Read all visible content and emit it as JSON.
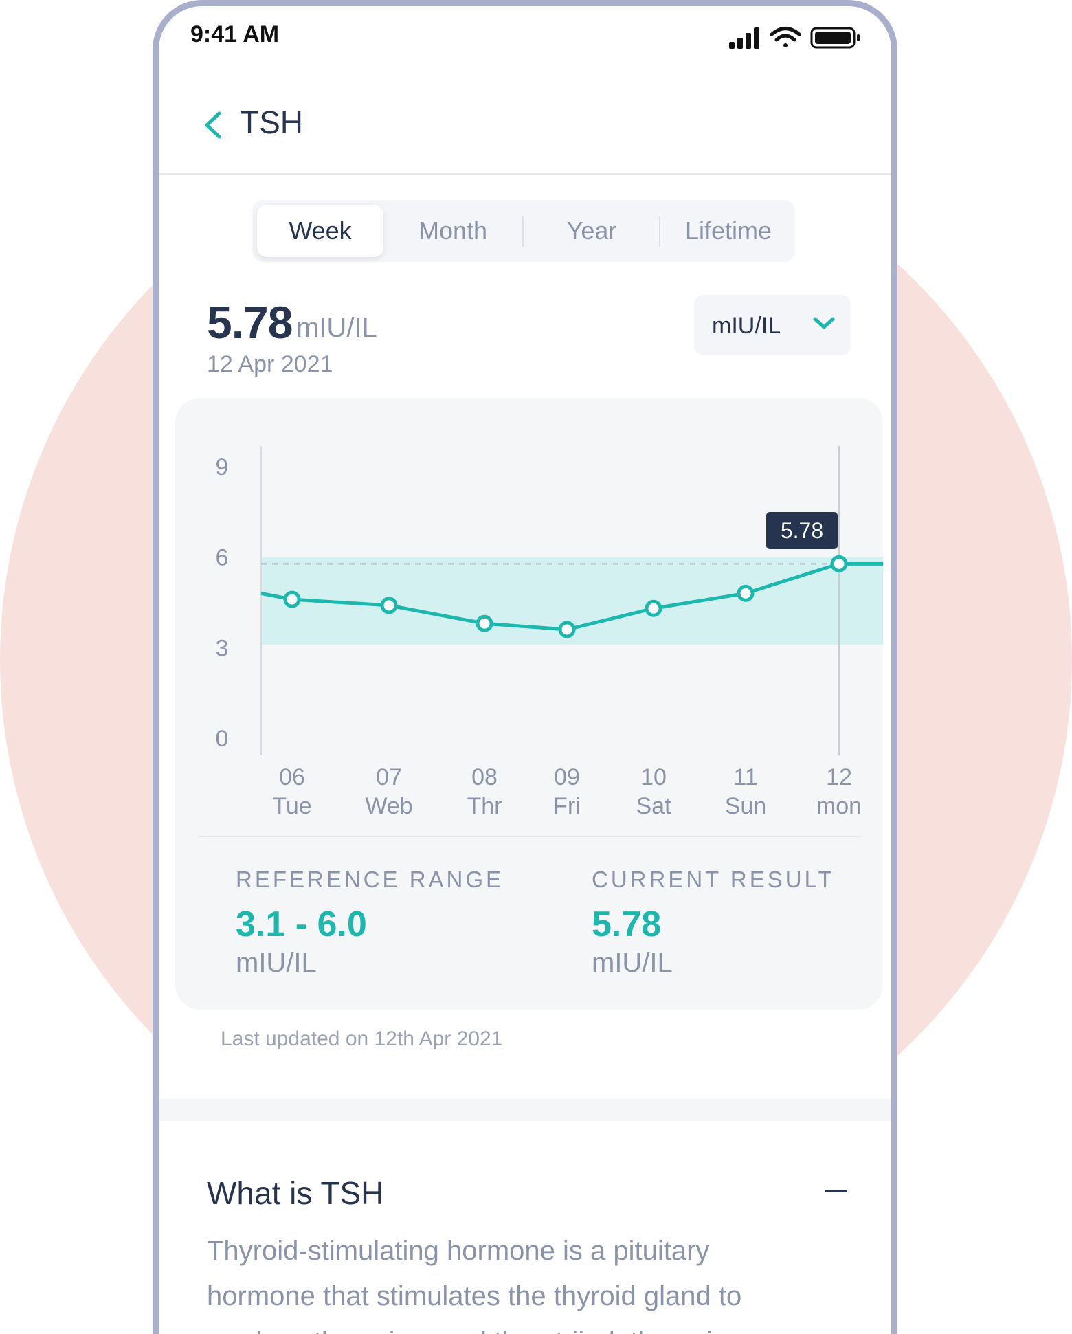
{
  "status_bar": {
    "time": "9:41 AM"
  },
  "header": {
    "title": "TSH"
  },
  "tabs": [
    {
      "label": "Week",
      "active": true
    },
    {
      "label": "Month",
      "active": false
    },
    {
      "label": "Year",
      "active": false
    },
    {
      "label": "Lifetime",
      "active": false
    }
  ],
  "current": {
    "value": "5.78",
    "unit": "mIU/IL",
    "date": "12 Apr 2021"
  },
  "unit_selector": {
    "selected": "mIU/IL"
  },
  "chart_data": {
    "type": "line",
    "y_ticks": [
      "9",
      "6",
      "3",
      "0"
    ],
    "ylim": [
      0,
      9
    ],
    "categories": [
      {
        "day": "06",
        "weekday": "Tue"
      },
      {
        "day": "07",
        "weekday": "Web"
      },
      {
        "day": "08",
        "weekday": "Thr"
      },
      {
        "day": "09",
        "weekday": "Fri"
      },
      {
        "day": "10",
        "weekday": "Sat"
      },
      {
        "day": "11",
        "weekday": "Sun"
      },
      {
        "day": "12",
        "weekday": "mon"
      }
    ],
    "values": [
      4.6,
      4.4,
      3.8,
      3.6,
      4.3,
      4.8,
      5.78
    ],
    "reference_band": [
      3.1,
      6.0
    ],
    "highlight_index": 6,
    "highlight_label": "5.78",
    "colors": {
      "line": "#1cb8ae",
      "band": "#d3f1f0",
      "tooltip": "#27344f"
    }
  },
  "reference": {
    "label": "REFERENCE RANGE",
    "value": "3.1 - 6.0",
    "unit": "mIU/IL"
  },
  "result": {
    "label": "CURRENT RESULT",
    "value": "5.78",
    "unit": "mIU/IL"
  },
  "updated": "Last updated on 12th Apr 2021",
  "about": {
    "title": "What is TSH",
    "text": "Thyroid-stimulating hormone is a pituitary hormone that stimulates the thyroid gland to produce thyroxine, and then triiodothyronine"
  }
}
